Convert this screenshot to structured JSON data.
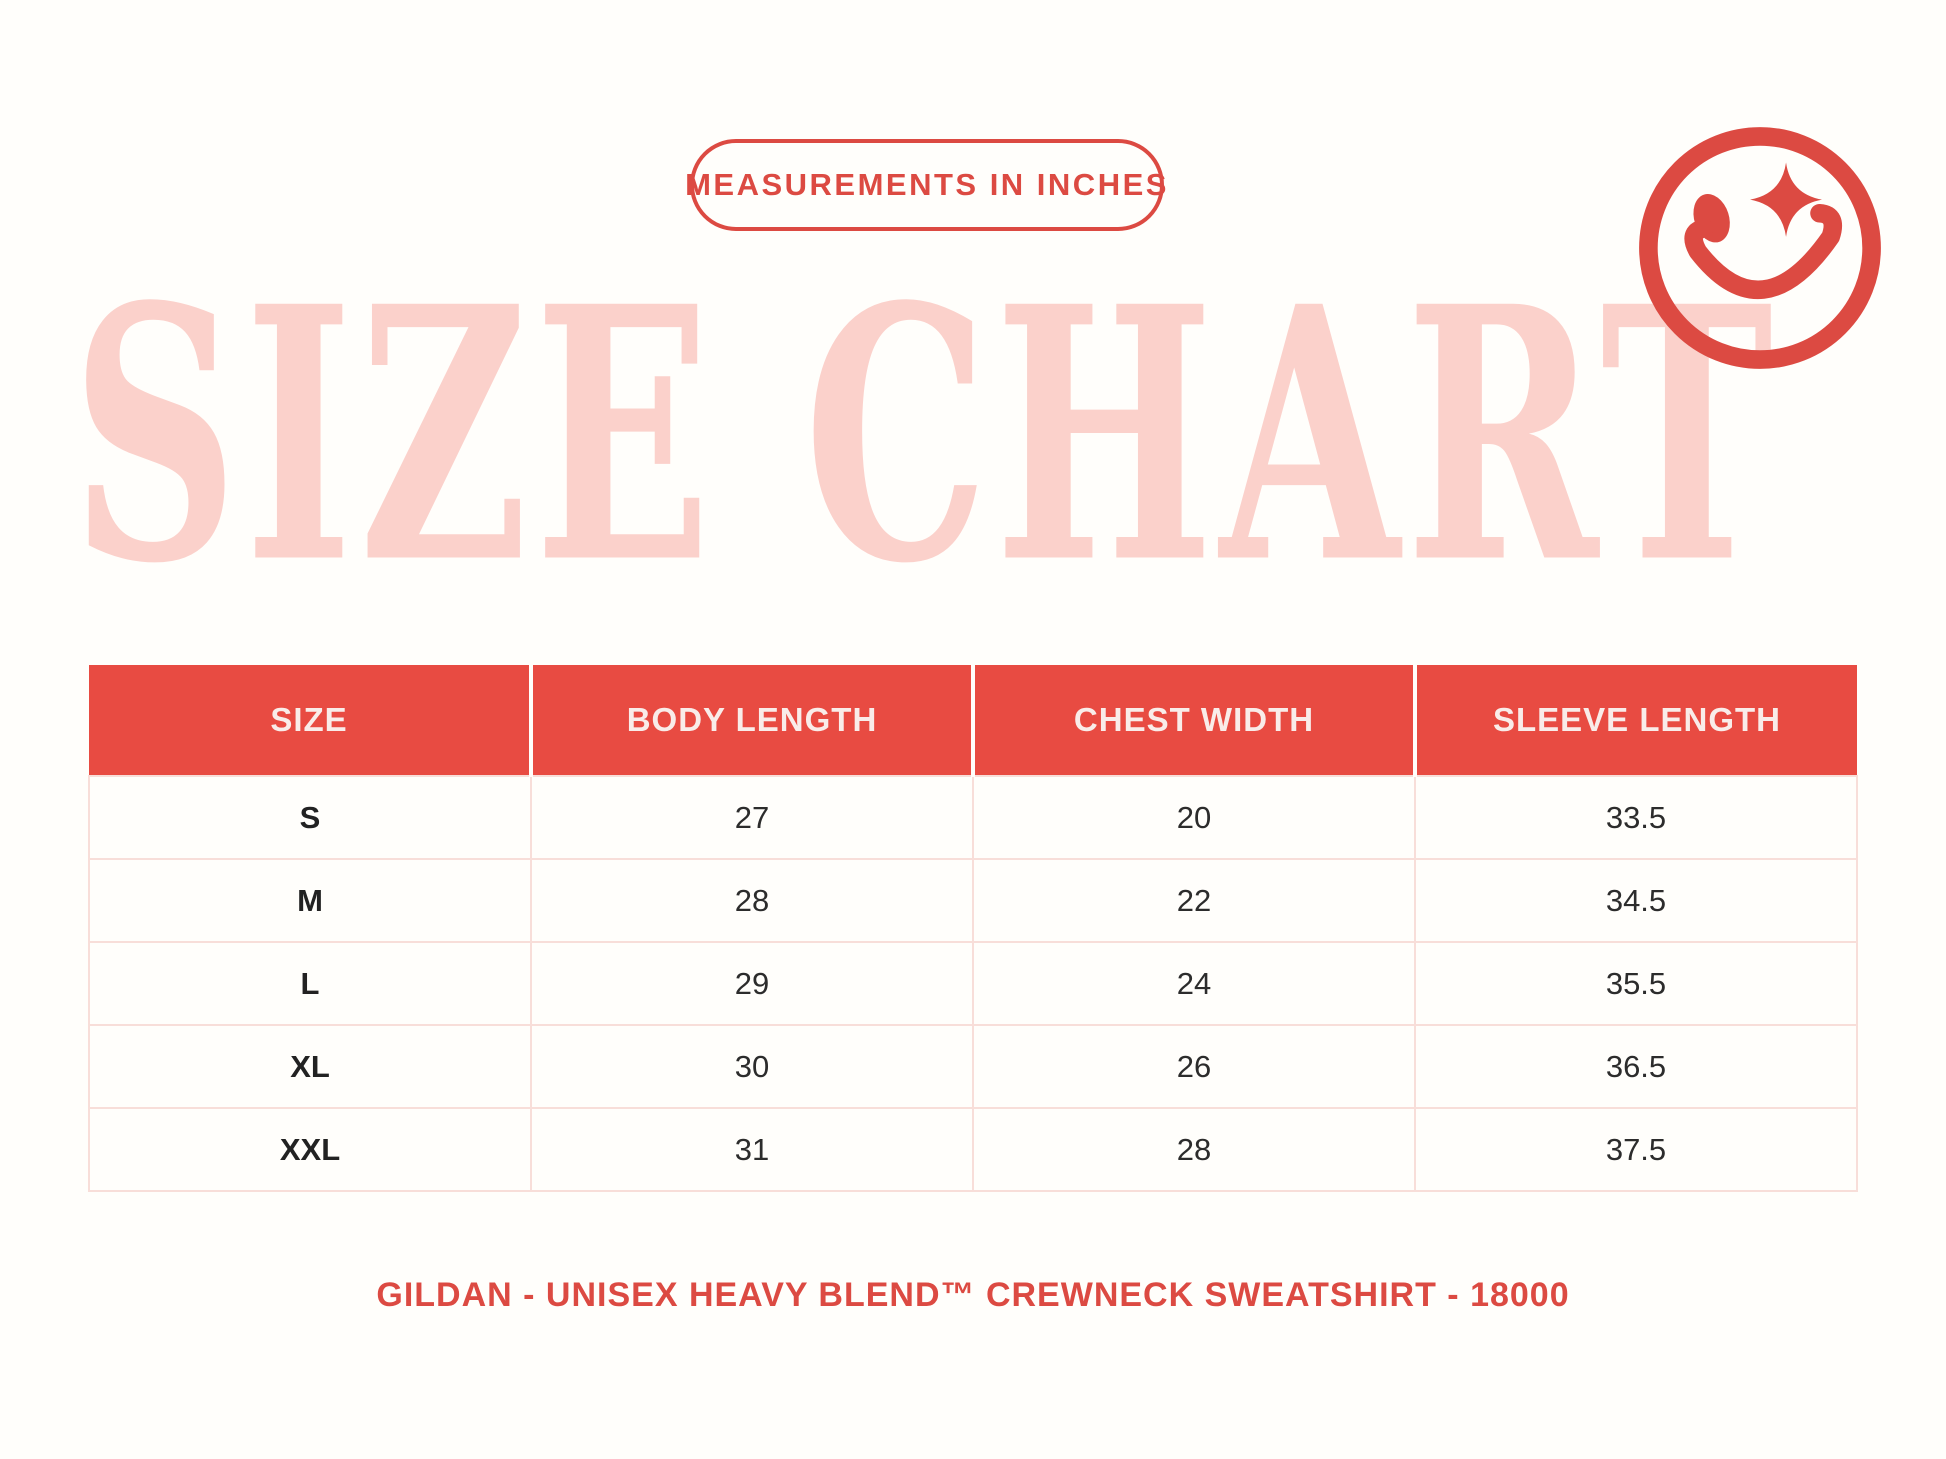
{
  "page": {
    "background_color": "#FFFEFB",
    "accent_red": "#DC4A42",
    "header_red": "#E84B42",
    "soft_pink": "#FBD1CB",
    "grid_pink": "#F8DED9",
    "body_text_color": "#2C2C2C"
  },
  "badge": {
    "label": "MEASUREMENTS IN INCHES"
  },
  "title": {
    "text": "SIZE CHART"
  },
  "icons": {
    "smiley": "winking-smiley-face-with-sparkle-eye",
    "smiley_color": "#DC4A42"
  },
  "footer": {
    "text": "GILDAN - UNISEX HEAVY BLEND™ CREWNECK SWEATSHIRT - 18000"
  },
  "chart_data": {
    "type": "table",
    "title": "SIZE CHART",
    "subtitle": "MEASUREMENTS IN INCHES",
    "columns": [
      "SIZE",
      "BODY LENGTH",
      "CHEST WIDTH",
      "SLEEVE LENGTH"
    ],
    "rows": [
      [
        "S",
        "27",
        "20",
        "33.5"
      ],
      [
        "M",
        "28",
        "22",
        "34.5"
      ],
      [
        "L",
        "29",
        "24",
        "35.5"
      ],
      [
        "XL",
        "30",
        "26",
        "36.5"
      ],
      [
        "XXL",
        "31",
        "28",
        "37.5"
      ]
    ],
    "units": "inches",
    "product": "GILDAN - UNISEX HEAVY BLEND™ CREWNECK SWEATSHIRT - 18000"
  }
}
